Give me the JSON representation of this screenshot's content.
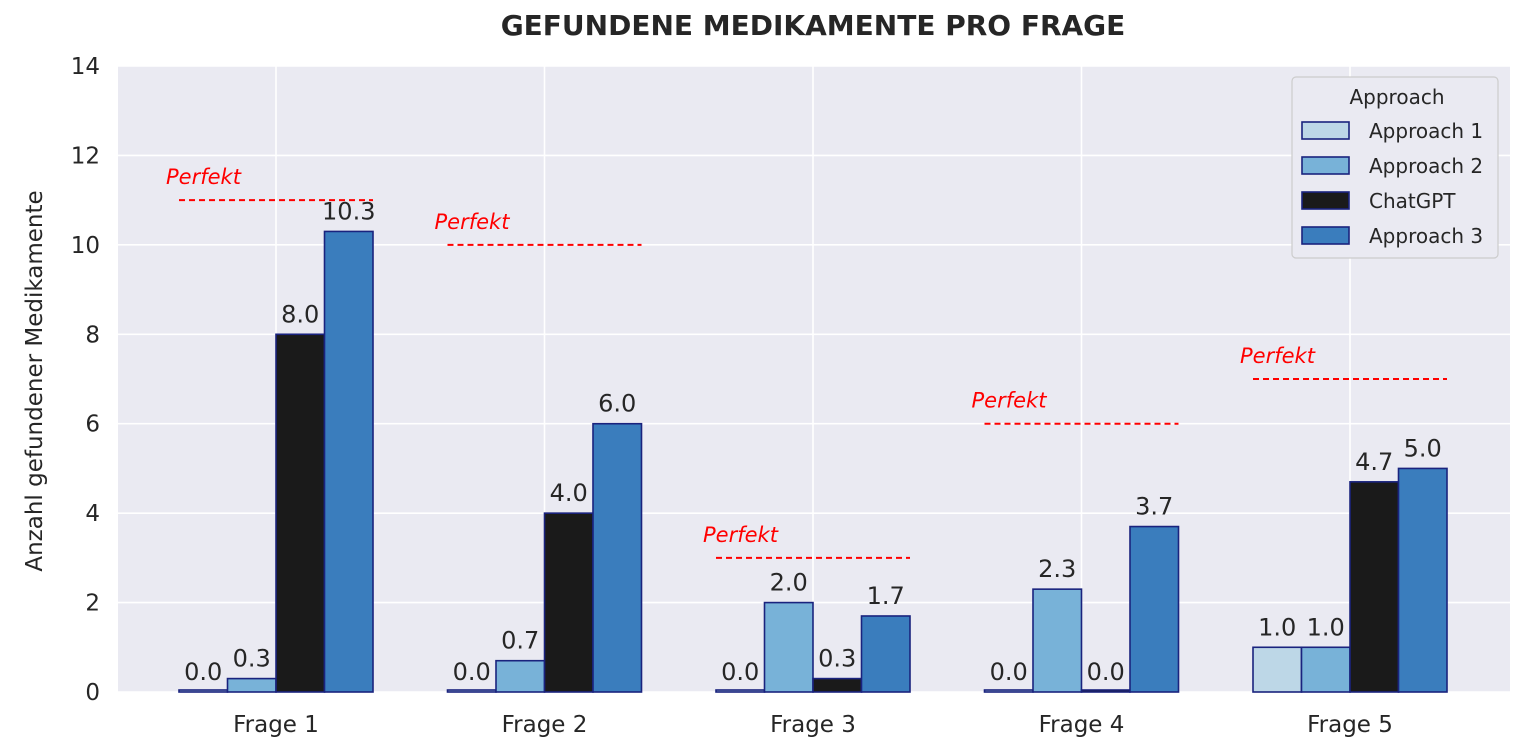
{
  "chart_data": {
    "type": "bar",
    "title": "GEFUNDENE MEDIKAMENTE PRO FRAGE",
    "xlabel": "",
    "ylabel": "Anzahl gefundener Medikamente",
    "ylim": [
      0,
      14
    ],
    "yticks": [
      0,
      2,
      4,
      6,
      8,
      10,
      12,
      14
    ],
    "categories": [
      "Frage 1",
      "Frage 2",
      "Frage 3",
      "Frage 4",
      "Frage 5"
    ],
    "series": [
      {
        "name": "Approach 1",
        "color": "#bdd7e7",
        "values": [
          0.0,
          0.0,
          0.0,
          0.0,
          1.0
        ],
        "labels": [
          "0.0",
          "0.0",
          "0.0",
          "0.0",
          "1.0"
        ]
      },
      {
        "name": "Approach 2",
        "color": "#78b2d8",
        "values": [
          0.3,
          0.7,
          2.0,
          2.3,
          1.0
        ],
        "labels": [
          "0.3",
          "0.7",
          "2.0",
          "2.3",
          "1.0"
        ]
      },
      {
        "name": "ChatGPT",
        "color": "#1a1a1a",
        "values": [
          8.0,
          4.0,
          0.3,
          0.0,
          4.7
        ],
        "labels": [
          "8.0",
          "4.0",
          "0.3",
          "0.0",
          "4.7"
        ]
      },
      {
        "name": "Approach 3",
        "color": "#3a7dbd",
        "values": [
          10.3,
          6.0,
          1.7,
          3.7,
          5.0
        ],
        "labels": [
          "10.3",
          "6.0",
          "1.7",
          "3.7",
          "5.0"
        ]
      }
    ],
    "reference": {
      "label": "Perfekt",
      "color": "#ff0000",
      "values": [
        11,
        10,
        3,
        6,
        7
      ]
    },
    "bar_edge_color": "#1a237e",
    "legend": {
      "title": "Approach",
      "placement": "top-right"
    },
    "grid": true,
    "background": "#eaeaf2"
  }
}
